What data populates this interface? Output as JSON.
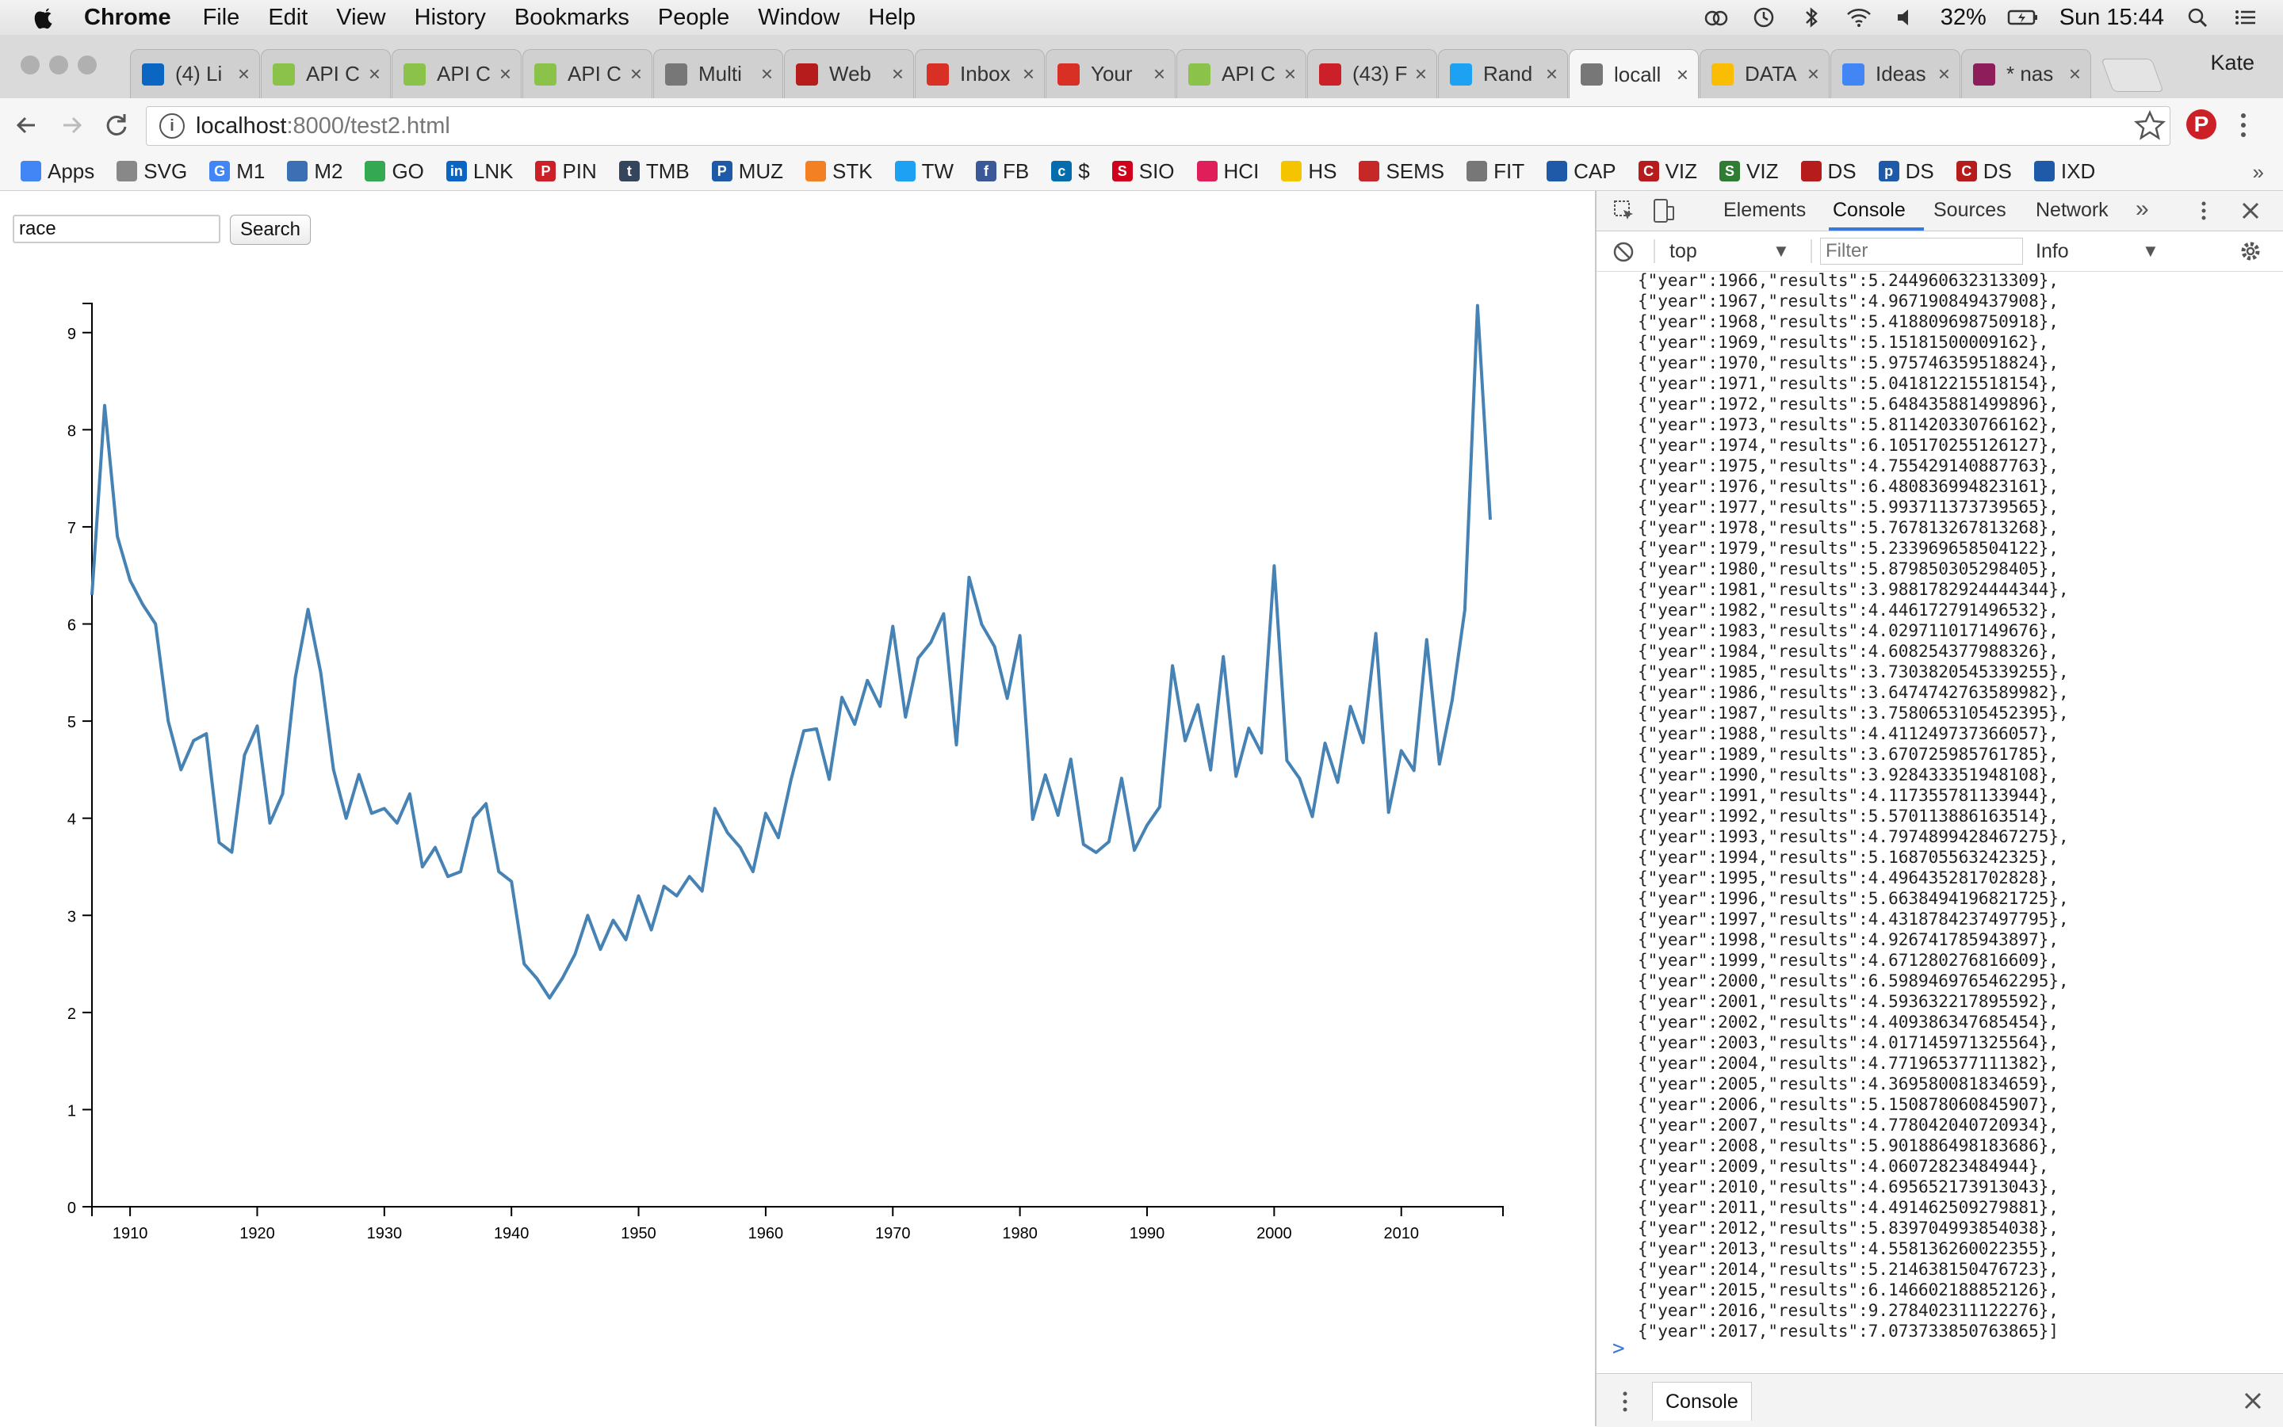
{
  "menubar": {
    "app_name": "Chrome",
    "menus": [
      "File",
      "Edit",
      "View",
      "History",
      "Bookmarks",
      "People",
      "Window",
      "Help"
    ],
    "battery": "32%",
    "clock": "Sun 15:44"
  },
  "tabs": [
    {
      "title": "(4) Li",
      "icon": "linkedin-icon",
      "color": "#0a66c2"
    },
    {
      "title": "API C",
      "icon": "api-icon",
      "color": "#8bc34a"
    },
    {
      "title": "API C",
      "icon": "api-icon",
      "color": "#8bc34a"
    },
    {
      "title": "API C",
      "icon": "api-icon",
      "color": "#8bc34a"
    },
    {
      "title": "Multi",
      "icon": "page-icon",
      "color": "#777777"
    },
    {
      "title": "Web",
      "icon": "coursera-icon",
      "color": "#b71c1c"
    },
    {
      "title": "Inbox",
      "icon": "gmail-icon",
      "color": "#d93025"
    },
    {
      "title": "Your",
      "icon": "gmail-icon",
      "color": "#d93025"
    },
    {
      "title": "API C",
      "icon": "api-icon",
      "color": "#8bc34a"
    },
    {
      "title": "(43) F",
      "icon": "pinterest-icon",
      "color": "#cb2027"
    },
    {
      "title": "Rand",
      "icon": "twitter-icon",
      "color": "#1da1f2"
    },
    {
      "title": "locall",
      "icon": "page-icon",
      "color": "#777777",
      "active": true
    },
    {
      "title": "DATA",
      "icon": "drive-icon",
      "color": "#fbbc04"
    },
    {
      "title": "Ideas",
      "icon": "docs-icon",
      "color": "#4285f4"
    },
    {
      "title": "* nas",
      "icon": "slack-icon",
      "color": "#8e1d5b"
    }
  ],
  "profile_name": "Kate",
  "address": {
    "host": "localhost",
    "path": ":8000/test2.html"
  },
  "bookmarks": [
    {
      "label": "Apps",
      "icon": "apps-grid-icon",
      "color": "#4285f4"
    },
    {
      "label": "SVG",
      "icon": "page-icon",
      "color": "#888888"
    },
    {
      "label": "M1",
      "icon": "google-icon",
      "color": "#4285f4",
      "glyph": "G"
    },
    {
      "label": "M2",
      "icon": "cloud-icon",
      "color": "#3d6fb5"
    },
    {
      "label": "GO",
      "icon": "maps-icon",
      "color": "#34a853"
    },
    {
      "label": "LNK",
      "icon": "linkedin-icon",
      "color": "#0a66c2",
      "glyph": "in"
    },
    {
      "label": "PIN",
      "icon": "pinterest-icon",
      "color": "#cb2027",
      "glyph": "P"
    },
    {
      "label": "TMB",
      "icon": "tumblr-icon",
      "color": "#35465c",
      "glyph": "t"
    },
    {
      "label": "MUZ",
      "icon": "muz-icon",
      "color": "#1e5aa8",
      "glyph": "P"
    },
    {
      "label": "STK",
      "icon": "stackoverflow-icon",
      "color": "#f48024"
    },
    {
      "label": "TW",
      "icon": "twitter-icon",
      "color": "#1da1f2"
    },
    {
      "label": "FB",
      "icon": "facebook-icon",
      "color": "#3b5998",
      "glyph": "f"
    },
    {
      "label": "$",
      "icon": "citi-icon",
      "color": "#056dae",
      "glyph": "c"
    },
    {
      "label": "SIO",
      "icon": "sio-icon",
      "color": "#d0021b",
      "glyph": "S"
    },
    {
      "label": "HCI",
      "icon": "slack-icon",
      "color": "#e01e5a"
    },
    {
      "label": "HS",
      "icon": "hs-icon",
      "color": "#f5c400"
    },
    {
      "label": "SEMS",
      "icon": "sems-icon",
      "color": "#c62828"
    },
    {
      "label": "FIT",
      "icon": "folder-icon",
      "color": "#777777"
    },
    {
      "label": "CAP",
      "icon": "cap-icon",
      "color": "#1e5aa8"
    },
    {
      "label": "VIZ",
      "icon": "coursera-icon",
      "color": "#b71c1c",
      "glyph": "C"
    },
    {
      "label": "VIZ",
      "icon": "viz-icon",
      "color": "#2e7d32",
      "glyph": "S"
    },
    {
      "label": "DS",
      "icon": "ds-icon",
      "color": "#b71c1c"
    },
    {
      "label": "DS",
      "icon": "ds-icon",
      "color": "#1e5aa8",
      "glyph": "p"
    },
    {
      "label": "DS",
      "icon": "coursera-icon",
      "color": "#b71c1c",
      "glyph": "C"
    },
    {
      "label": "IXD",
      "icon": "ixd-icon",
      "color": "#1e5aa8"
    }
  ],
  "search": {
    "value": "race",
    "button_label": "Search"
  },
  "chart_data": {
    "type": "line",
    "title": "",
    "xlabel": "",
    "ylabel": "",
    "color": "#4682b4",
    "xlim": [
      1907,
      2018
    ],
    "ylim": [
      0,
      9.3
    ],
    "xticks": [
      1910,
      1920,
      1930,
      1940,
      1950,
      1960,
      1970,
      1980,
      1990,
      2000,
      2010
    ],
    "yticks": [
      0,
      1,
      2,
      3,
      4,
      5,
      6,
      7,
      8,
      9
    ],
    "grid": false,
    "x": [
      1907,
      1908,
      1909,
      1910,
      1911,
      1912,
      1913,
      1914,
      1915,
      1916,
      1917,
      1918,
      1919,
      1920,
      1921,
      1922,
      1923,
      1924,
      1925,
      1926,
      1927,
      1928,
      1929,
      1930,
      1931,
      1932,
      1933,
      1934,
      1935,
      1936,
      1937,
      1938,
      1939,
      1940,
      1941,
      1942,
      1943,
      1944,
      1945,
      1946,
      1947,
      1948,
      1949,
      1950,
      1951,
      1952,
      1953,
      1954,
      1955,
      1956,
      1957,
      1958,
      1959,
      1960,
      1961,
      1962,
      1963,
      1964,
      1965,
      1966,
      1967,
      1968,
      1969,
      1970,
      1971,
      1972,
      1973,
      1974,
      1975,
      1976,
      1977,
      1978,
      1979,
      1980,
      1981,
      1982,
      1983,
      1984,
      1985,
      1986,
      1987,
      1988,
      1989,
      1990,
      1991,
      1992,
      1993,
      1994,
      1995,
      1996,
      1997,
      1998,
      1999,
      2000,
      2001,
      2002,
      2003,
      2004,
      2005,
      2006,
      2007,
      2008,
      2009,
      2010,
      2011,
      2012,
      2013,
      2014,
      2015,
      2016,
      2017
    ],
    "y": [
      6.3,
      8.25,
      6.9,
      6.45,
      6.2,
      6.0,
      5.0,
      4.5,
      4.8,
      4.87,
      3.75,
      3.65,
      4.65,
      4.95,
      3.95,
      4.25,
      5.45,
      6.15,
      5.5,
      4.5,
      4.0,
      4.45,
      4.05,
      4.1,
      3.95,
      4.25,
      3.5,
      3.7,
      3.4,
      3.45,
      4.0,
      4.15,
      3.45,
      3.35,
      2.5,
      2.35,
      2.15,
      2.35,
      2.6,
      3.0,
      2.65,
      2.95,
      2.75,
      3.2,
      2.85,
      3.3,
      3.2,
      3.4,
      3.25,
      4.1,
      3.85,
      3.7,
      3.45,
      4.05,
      3.8,
      4.4,
      4.9,
      4.92,
      4.4,
      5.244960632313309,
      4.967190849437908,
      5.418809698750918,
      5.15181500009162,
      5.975746359518824,
      5.041812215518154,
      5.648435881499896,
      5.811420330766162,
      6.105170255126127,
      4.755429140887763,
      6.480836994823161,
      5.993711373739565,
      5.767813267813268,
      5.233969658504122,
      5.879850305298405,
      3.9881782924444344,
      4.446172791496532,
      4.029711017149676,
      4.608254377988326,
      3.7303820545339255,
      3.6474742763589982,
      3.7580653105452395,
      4.411249737366057,
      3.670725985761785,
      3.928433351948108,
      4.117355781133944,
      5.570113886163514,
      4.7974899428467275,
      5.168705563242325,
      4.496435281702828,
      5.6638494196821725,
      4.4318784237497795,
      4.926741785943897,
      4.671280276816609,
      6.598946976546229,
      4.593632217895592,
      4.409386347685454,
      4.017145971325564,
      4.771965377111382,
      4.369580081834659,
      5.150878060845907,
      4.778042040720934,
      5.901886498183686,
      4.06072823484944,
      4.695652173913043,
      4.491462509279881,
      5.839704993854038,
      4.558136260022355,
      5.214638150476723,
      6.146602188852126,
      9.278402311122276,
      7.073733850763865
    ]
  },
  "devtools": {
    "tabs": [
      "Elements",
      "Console",
      "Sources",
      "Network"
    ],
    "active_tab": "Console",
    "context": "top",
    "filter_placeholder": "Filter",
    "level": "Info",
    "console_lines": [
      "{\"year\":1966,\"results\":5.244960632313309},",
      "{\"year\":1967,\"results\":4.967190849437908},",
      "{\"year\":1968,\"results\":5.418809698750918},",
      "{\"year\":1969,\"results\":5.15181500009162},",
      "{\"year\":1970,\"results\":5.975746359518824},",
      "{\"year\":1971,\"results\":5.041812215518154},",
      "{\"year\":1972,\"results\":5.648435881499896},",
      "{\"year\":1973,\"results\":5.811420330766162},",
      "{\"year\":1974,\"results\":6.105170255126127},",
      "{\"year\":1975,\"results\":4.755429140887763},",
      "{\"year\":1976,\"results\":6.480836994823161},",
      "{\"year\":1977,\"results\":5.993711373739565},",
      "{\"year\":1978,\"results\":5.767813267813268},",
      "{\"year\":1979,\"results\":5.233969658504122},",
      "{\"year\":1980,\"results\":5.879850305298405},",
      "{\"year\":1981,\"results\":3.9881782924444344},",
      "{\"year\":1982,\"results\":4.446172791496532},",
      "{\"year\":1983,\"results\":4.029711017149676},",
      "{\"year\":1984,\"results\":4.608254377988326},",
      "{\"year\":1985,\"results\":3.7303820545339255},",
      "{\"year\":1986,\"results\":3.6474742763589982},",
      "{\"year\":1987,\"results\":3.7580653105452395},",
      "{\"year\":1988,\"results\":4.411249737366057},",
      "{\"year\":1989,\"results\":3.670725985761785},",
      "{\"year\":1990,\"results\":3.928433351948108},",
      "{\"year\":1991,\"results\":4.117355781133944},",
      "{\"year\":1992,\"results\":5.570113886163514},",
      "{\"year\":1993,\"results\":4.7974899428467275},",
      "{\"year\":1994,\"results\":5.168705563242325},",
      "{\"year\":1995,\"results\":4.496435281702828},",
      "{\"year\":1996,\"results\":5.6638494196821725},",
      "{\"year\":1997,\"results\":4.4318784237497795},",
      "{\"year\":1998,\"results\":4.926741785943897},",
      "{\"year\":1999,\"results\":4.671280276816609},",
      "{\"year\":2000,\"results\":6.5989469765462295},",
      "{\"year\":2001,\"results\":4.593632217895592},",
      "{\"year\":2002,\"results\":4.409386347685454},",
      "{\"year\":2003,\"results\":4.017145971325564},",
      "{\"year\":2004,\"results\":4.771965377111382},",
      "{\"year\":2005,\"results\":4.369580081834659},",
      "{\"year\":2006,\"results\":5.150878060845907},",
      "{\"year\":2007,\"results\":4.778042040720934},",
      "{\"year\":2008,\"results\":5.901886498183686},",
      "{\"year\":2009,\"results\":4.06072823484944},",
      "{\"year\":2010,\"results\":4.695652173913043},",
      "{\"year\":2011,\"results\":4.491462509279881},",
      "{\"year\":2012,\"results\":5.839704993854038},",
      "{\"year\":2013,\"results\":4.558136260022355},",
      "{\"year\":2014,\"results\":5.214638150476723},",
      "{\"year\":2015,\"results\":6.146602188852126},",
      "{\"year\":2016,\"results\":9.278402311122276},",
      "{\"year\":2017,\"results\":7.073733850763865}]"
    ],
    "prompt": ">",
    "drawer_tab": "Console"
  }
}
